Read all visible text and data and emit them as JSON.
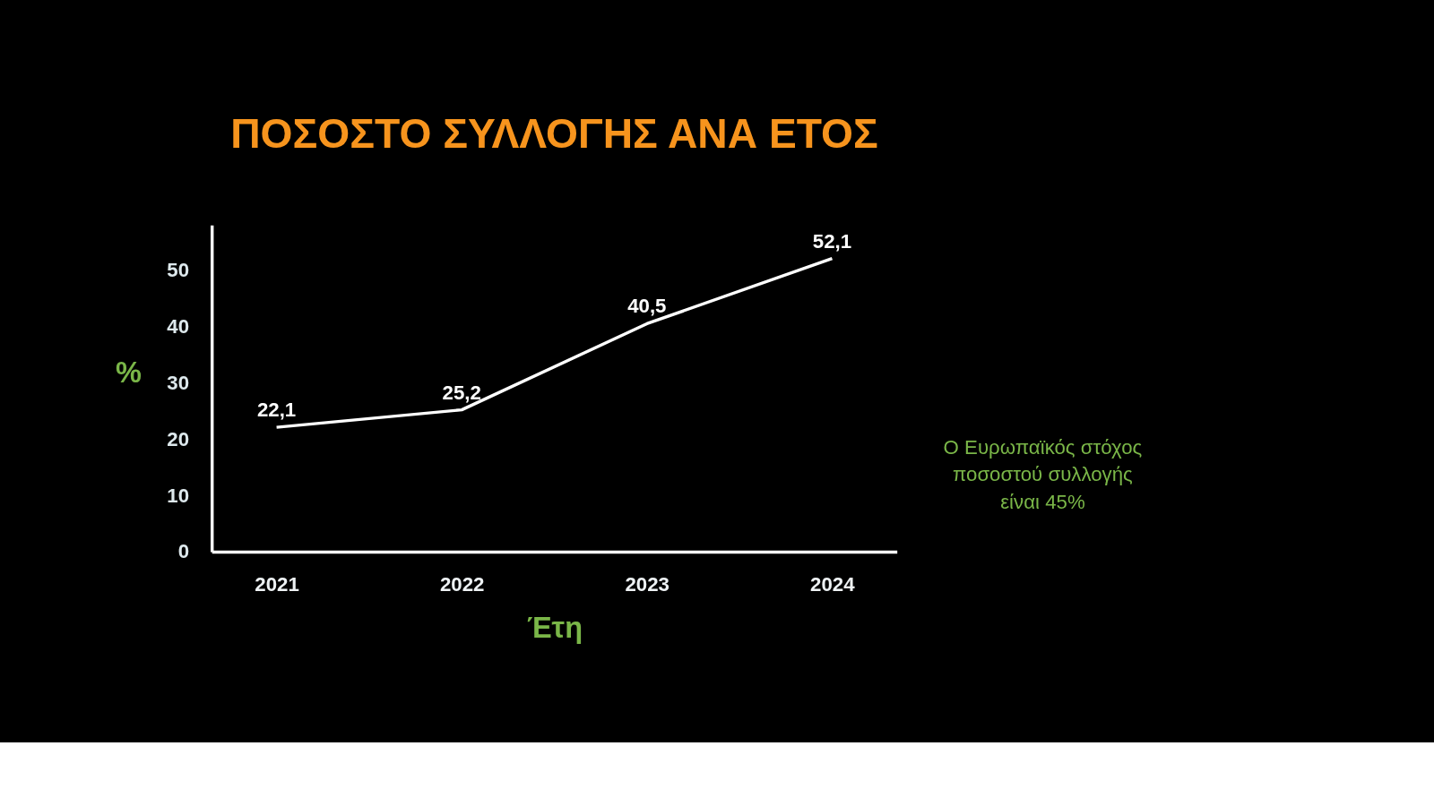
{
  "chart_data": {
    "type": "line",
    "title": "ΠΟΣΟΣΤΟ ΣΥΛΛΟΓΗΣ ΑΝΑ ΕΤΟΣ",
    "xlabel": "Έτη",
    "ylabel": "%",
    "categories": [
      "2021",
      "2022",
      "2023",
      "2024"
    ],
    "series": [
      {
        "color": "#ffffff",
        "values": [
          22.1,
          25.2,
          40.5,
          52.1
        ],
        "value_labels": [
          "22,1",
          "25,2",
          "40,5",
          "52,1"
        ]
      }
    ],
    "ylim": [
      0,
      58
    ],
    "yticks": [
      0,
      10,
      20,
      30,
      40,
      50
    ],
    "grid": false,
    "legend": false,
    "marker": "none",
    "line_style": "solid",
    "annotations": [
      "Ο Ευρωπαϊκός στόχος\nποσοστού συλλογής\nείναι 45%"
    ]
  }
}
